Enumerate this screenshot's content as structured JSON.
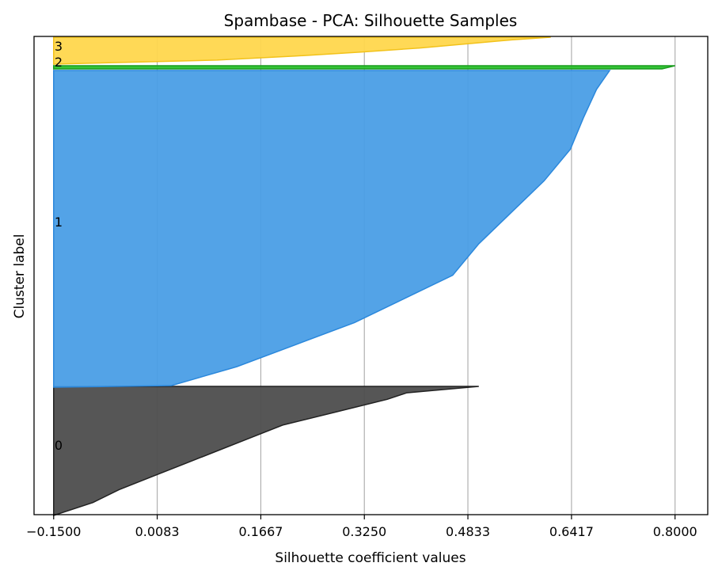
{
  "chart_data": {
    "type": "area",
    "title": "Spambase - PCA: Silhouette Samples",
    "xlabel": "Silhouette coefficient values",
    "ylabel": "Cluster label",
    "xlim": [
      -0.18,
      0.85
    ],
    "xticks": [
      -0.15,
      0.0083,
      0.1667,
      0.325,
      0.4833,
      0.6417,
      0.8
    ],
    "xtick_labels": [
      "−0.1500",
      "0.0083",
      "0.1667",
      "0.3250",
      "0.4833",
      "0.6417",
      "0.8000"
    ],
    "grid": "vertical",
    "clusters": [
      {
        "label": "0",
        "color": "#4d4d4d",
        "edge": "#222222",
        "profile": [
          [
            0.0,
            0.5
          ],
          [
            0.05,
            0.39
          ],
          [
            0.1,
            0.36
          ],
          [
            0.2,
            0.28
          ],
          [
            0.3,
            0.2
          ],
          [
            0.4,
            0.15
          ],
          [
            0.5,
            0.1
          ],
          [
            0.6,
            0.05
          ],
          [
            0.7,
            0.0
          ],
          [
            0.8,
            -0.05
          ],
          [
            0.9,
            -0.09
          ],
          [
            1.0,
            -0.15
          ]
        ]
      },
      {
        "label": "1",
        "color": "#4a9ee6",
        "edge": "#2b88dc",
        "profile": [
          [
            0.0,
            0.7
          ],
          [
            0.06,
            0.68
          ],
          [
            0.15,
            0.66
          ],
          [
            0.25,
            0.64
          ],
          [
            0.35,
            0.6
          ],
          [
            0.45,
            0.55
          ],
          [
            0.55,
            0.5
          ],
          [
            0.65,
            0.46
          ],
          [
            0.72,
            0.39
          ],
          [
            0.8,
            0.31
          ],
          [
            0.87,
            0.22
          ],
          [
            0.94,
            0.13
          ],
          [
            1.0,
            0.03
          ],
          [
            1.005,
            -0.15
          ]
        ]
      },
      {
        "label": "2",
        "color": "#29c22c",
        "edge": "#1a9c1e",
        "profile": [
          [
            0.0,
            0.8
          ],
          [
            0.5,
            0.79
          ],
          [
            1.0,
            0.78
          ]
        ]
      },
      {
        "label": "3",
        "color": "#ffd74d",
        "edge": "#f2c21a",
        "profile": [
          [
            0.0,
            0.61
          ],
          [
            0.1,
            0.55
          ],
          [
            0.25,
            0.48
          ],
          [
            0.4,
            0.41
          ],
          [
            0.55,
            0.32
          ],
          [
            0.7,
            0.22
          ],
          [
            0.85,
            0.1
          ],
          [
            1.0,
            -0.15
          ]
        ]
      }
    ]
  }
}
